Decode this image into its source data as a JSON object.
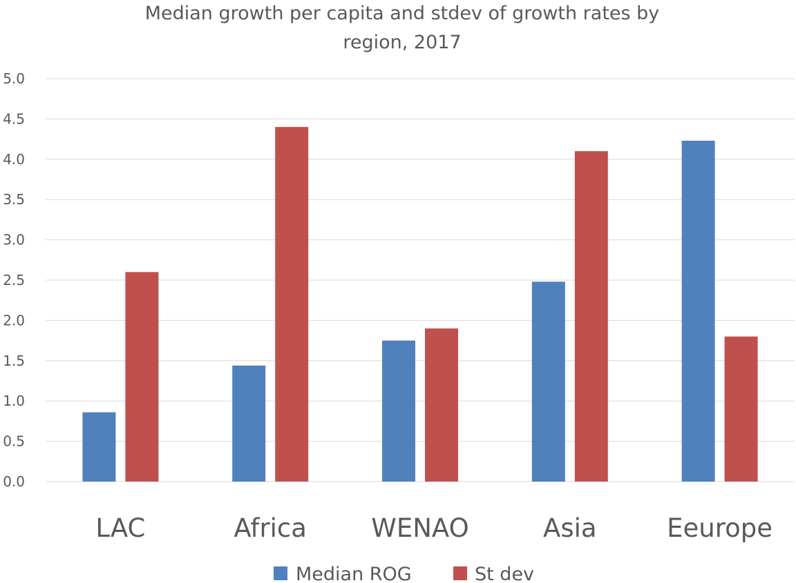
{
  "chart_data": {
    "type": "bar",
    "title": "Median growth per capita and stdev of growth rates by region, 2017",
    "title_lines": [
      "Median growth per capita and stdev of growth rates by",
      "region, 2017"
    ],
    "categories": [
      "LAC",
      "Africa",
      "WENAO",
      "Asia",
      "Eeurope"
    ],
    "series": [
      {
        "name": "Median ROG",
        "color": "#4f81bd",
        "values": [
          0.86,
          1.44,
          1.75,
          2.48,
          4.23
        ]
      },
      {
        "name": "St dev",
        "color": "#c0504d",
        "values": [
          2.6,
          4.4,
          1.9,
          4.1,
          1.8
        ]
      }
    ],
    "ylim": [
      0,
      5
    ],
    "yticks": [
      "0.0",
      "0.5",
      "1.0",
      "1.5",
      "2.0",
      "2.5",
      "3.0",
      "3.5",
      "4.0",
      "4.5",
      "5.0"
    ],
    "xlabel": "",
    "ylabel": "",
    "grid": true,
    "legend_position": "bottom"
  }
}
